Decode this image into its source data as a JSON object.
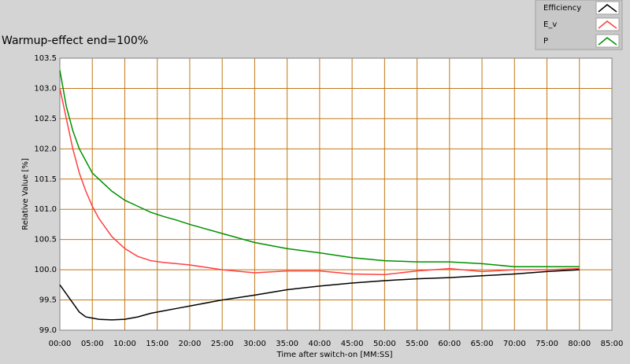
{
  "chart_data": {
    "type": "line",
    "title": "Warmup-effect end=100%",
    "x_label": "Time after switch-on [MM:SS]",
    "y_label": "Relative Value [%]",
    "x": [
      0,
      1,
      2,
      3,
      4,
      5,
      6,
      8,
      10,
      12,
      14,
      16,
      18,
      20,
      25,
      30,
      35,
      40,
      45,
      50,
      55,
      60,
      65,
      70,
      75,
      80
    ],
    "series": [
      {
        "name": "Efficiency",
        "color": "#000000",
        "values": [
          99.75,
          99.6,
          99.45,
          99.3,
          99.22,
          99.2,
          99.18,
          99.17,
          99.18,
          99.22,
          99.28,
          99.32,
          99.36,
          99.4,
          99.5,
          99.58,
          99.67,
          99.73,
          99.78,
          99.82,
          99.85,
          99.87,
          99.9,
          99.93,
          99.97,
          100.0
        ]
      },
      {
        "name": "E_v",
        "color": "#ff4040",
        "values": [
          103.0,
          102.5,
          102.0,
          101.6,
          101.3,
          101.05,
          100.85,
          100.55,
          100.35,
          100.22,
          100.15,
          100.12,
          100.1,
          100.08,
          100.0,
          99.95,
          99.98,
          99.98,
          99.93,
          99.92,
          99.98,
          100.02,
          99.97,
          100.0,
          100.0,
          100.02
        ]
      },
      {
        "name": "P",
        "color": "#009000",
        "values": [
          103.3,
          102.7,
          102.3,
          102.0,
          101.8,
          101.6,
          101.5,
          101.3,
          101.15,
          101.05,
          100.95,
          100.88,
          100.82,
          100.75,
          100.6,
          100.45,
          100.35,
          100.28,
          100.2,
          100.15,
          100.13,
          100.13,
          100.1,
          100.05,
          100.05,
          100.05
        ]
      }
    ],
    "xlim": [
      0,
      85
    ],
    "xticks": [
      {
        "value": 0,
        "label": "00:00"
      },
      {
        "value": 5,
        "label": "05:00"
      },
      {
        "value": 10,
        "label": "10:00"
      },
      {
        "value": 15,
        "label": "15:00"
      },
      {
        "value": 20,
        "label": "20:00"
      },
      {
        "value": 25,
        "label": "25:00"
      },
      {
        "value": 30,
        "label": "30:00"
      },
      {
        "value": 35,
        "label": "35:00"
      },
      {
        "value": 40,
        "label": "40:00"
      },
      {
        "value": 45,
        "label": "45:00"
      },
      {
        "value": 50,
        "label": "50:00"
      },
      {
        "value": 55,
        "label": "55:00"
      },
      {
        "value": 60,
        "label": "60:00"
      },
      {
        "value": 65,
        "label": "65:00"
      },
      {
        "value": 70,
        "label": "70:00"
      },
      {
        "value": 75,
        "label": "75:00"
      },
      {
        "value": 80,
        "label": "80:00"
      },
      {
        "value": 85,
        "label": "85:00"
      }
    ],
    "ylim": [
      99,
      103.5
    ],
    "yticks": [
      {
        "value": 99,
        "label": "99.0"
      },
      99.5,
      {
        "value": 100,
        "label": "100.0"
      },
      100.5,
      {
        "value": 101,
        "label": "101.0"
      },
      101.5,
      {
        "value": 102,
        "label": "102.0"
      },
      102.5,
      {
        "value": 103,
        "label": "103.0"
      },
      103.5
    ],
    "grid": true,
    "legend": "top-right"
  }
}
